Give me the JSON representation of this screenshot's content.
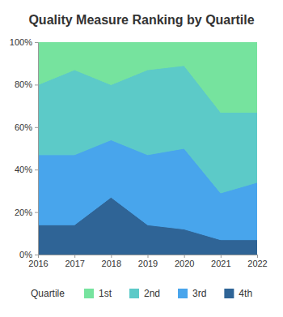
{
  "chart_data": {
    "type": "area",
    "title": "Quality Measure Ranking by Quartile",
    "stacked": true,
    "legend": "bottom",
    "legend_title": "Quartile",
    "x": [
      2016,
      2017,
      2018,
      2019,
      2020,
      2021,
      2022
    ],
    "xlim": [
      2016,
      2022
    ],
    "xticks": [
      2016,
      2017,
      2018,
      2019,
      2020,
      2021,
      2022
    ],
    "ylim": [
      0,
      100
    ],
    "yticks": [
      {
        "value": 0,
        "label": "0%"
      },
      {
        "value": 20,
        "label": "20%"
      },
      {
        "value": 40,
        "label": "40%"
      },
      {
        "value": 60,
        "label": "60%"
      },
      {
        "value": 80,
        "label": "80%"
      },
      {
        "value": 100,
        "label": "100%"
      }
    ],
    "series": [
      {
        "name": "1st",
        "color": "#76e39e",
        "values": [
          20,
          13,
          20,
          13,
          11,
          33,
          33
        ]
      },
      {
        "name": "2nd",
        "color": "#5ccac8",
        "values": [
          33,
          40,
          26,
          40,
          39,
          38,
          33
        ]
      },
      {
        "name": "3rd",
        "color": "#48a5ec",
        "values": [
          33,
          33,
          27,
          33,
          38,
          22,
          27
        ]
      },
      {
        "name": "4th",
        "color": "#2f6496",
        "values": [
          14,
          14,
          27,
          14,
          12,
          7,
          7
        ]
      }
    ]
  }
}
